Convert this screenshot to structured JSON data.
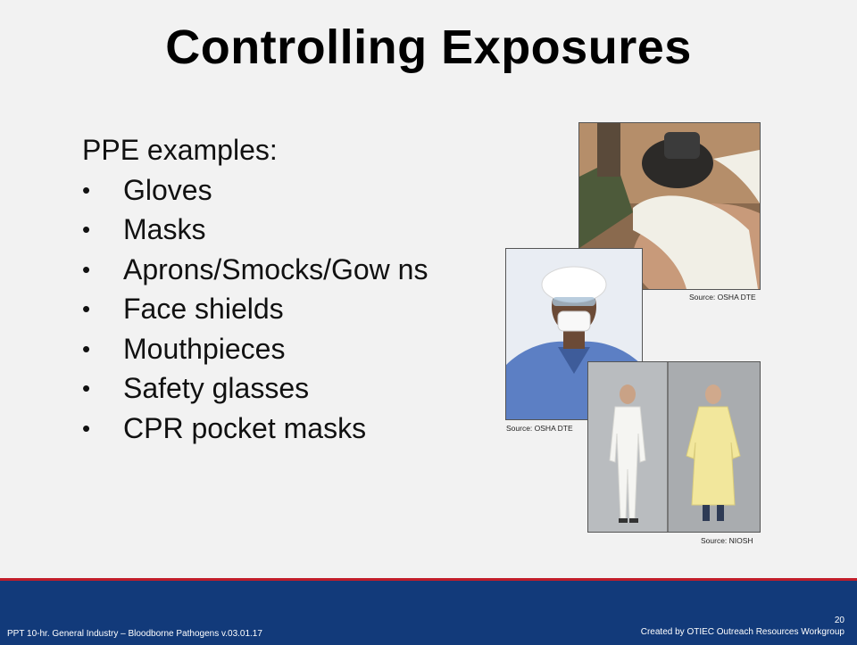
{
  "slide": {
    "title": "Controlling Exposures",
    "intro": "PPE examples:",
    "bullets": [
      "Gloves",
      "Masks",
      "Aprons/Smocks/Gow ns",
      "Face shields",
      "Mouthpieces",
      "Safety glasses",
      "CPR pocket masks"
    ]
  },
  "images": {
    "gloves_mask": {
      "caption": "Source: OSHA DTE"
    },
    "surgical_mask": {
      "caption": "Source: OSHA DTE"
    },
    "gowns": {
      "caption": "Source: NIOSH"
    }
  },
  "footer": {
    "left_text": "PPT 10-hr. General Industry – Bloodborne Pathogens v.03.01.17",
    "page_number": "20",
    "right_text": "Created by OTIEC Outreach Resources Workgroup"
  },
  "colors": {
    "background": "#f2f2f2",
    "footer_bar": "#123a7a",
    "footer_accent": "#c11d2a"
  }
}
